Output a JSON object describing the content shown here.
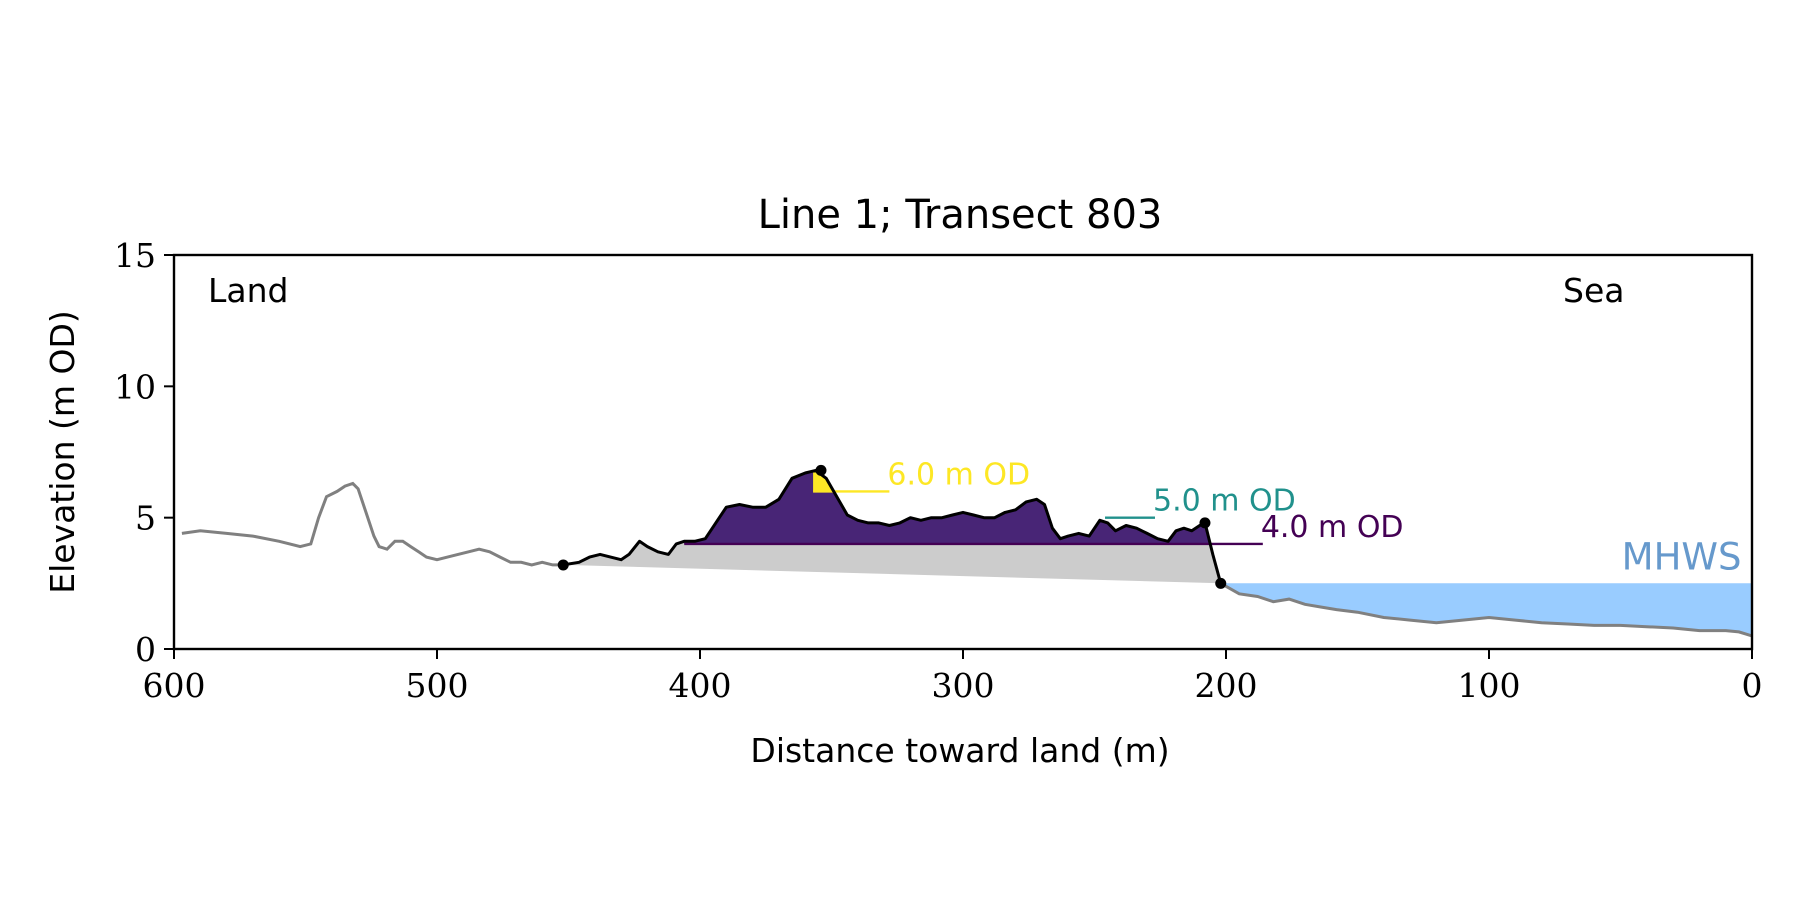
{
  "chart_data": {
    "type": "area",
    "title": "Line 1; Transect 803",
    "xlabel": "Distance toward land (m)",
    "ylabel": "Elevation (m OD)",
    "xlim": [
      600,
      0
    ],
    "ylim": [
      0,
      15
    ],
    "x_ticks": [
      600,
      500,
      400,
      300,
      200,
      100,
      0
    ],
    "x_tick_labels": [
      "600",
      "500",
      "400",
      "300",
      "200",
      "100",
      "0"
    ],
    "y_ticks": [
      0,
      5,
      10,
      15
    ],
    "y_tick_labels": [
      "0",
      "5",
      "10",
      "15"
    ],
    "grid": false,
    "corner_labels": {
      "left": "Land",
      "right": "Sea"
    },
    "mhws": {
      "label": "MHWS",
      "elevation": 2.5,
      "color": "#99ccff",
      "label_color": "#6699cc"
    },
    "thresholds": [
      {
        "label": "6.0 m OD",
        "elevation": 6.0,
        "color": "#fde725",
        "x_start": 357,
        "x_end": 328
      },
      {
        "label": "5.0 m OD",
        "elevation": 5.0,
        "color": "#21918c",
        "x_start": 246,
        "x_end": 227
      },
      {
        "label": "4.0 m OD",
        "elevation": 4.0,
        "color": "#440154",
        "x_start": 406,
        "x_end": 186
      }
    ],
    "colors": {
      "profile": "#808080",
      "dune": "#000000",
      "base_fill": "#cccccc",
      "band_fill": "#482576",
      "top_fill": "#fde725"
    },
    "dune_points": {
      "toe": {
        "x": 452,
        "y": 3.2
      },
      "crest": {
        "x": 354,
        "y": 6.8
      },
      "seaward_crest": {
        "x": 208,
        "y": 4.8
      },
      "seaward_toe": {
        "x": 202,
        "y": 2.5
      }
    },
    "profile": {
      "x": [
        597,
        590,
        580,
        570,
        560,
        552,
        548,
        545,
        542,
        538,
        535,
        532,
        530,
        527,
        524,
        522,
        519,
        516,
        513,
        510,
        507,
        504,
        500,
        496,
        492,
        488,
        484,
        480,
        476,
        472,
        468,
        464,
        460,
        456,
        452
      ],
      "y": [
        4.4,
        4.5,
        4.4,
        4.3,
        4.1,
        3.9,
        4.0,
        5.0,
        5.8,
        6.0,
        6.2,
        6.3,
        6.1,
        5.2,
        4.3,
        3.9,
        3.8,
        4.1,
        4.1,
        3.9,
        3.7,
        3.5,
        3.4,
        3.5,
        3.6,
        3.7,
        3.8,
        3.7,
        3.5,
        3.3,
        3.3,
        3.2,
        3.3,
        3.2,
        3.2
      ]
    },
    "dune_profile": {
      "x": [
        452,
        446,
        442,
        438,
        434,
        430,
        427,
        423,
        420,
        416,
        412,
        409,
        406,
        402,
        398,
        394,
        390,
        385,
        380,
        375,
        370,
        365,
        360,
        356,
        352,
        348,
        344,
        340,
        336,
        332,
        328,
        324,
        320,
        316,
        312,
        308,
        304,
        300,
        296,
        292,
        288,
        284,
        280,
        276,
        272,
        269,
        266,
        263,
        260,
        256,
        252,
        248,
        245,
        242,
        238,
        234,
        230,
        226,
        222,
        219,
        216,
        213,
        210,
        208,
        205,
        202
      ],
      "y": [
        3.2,
        3.3,
        3.5,
        3.6,
        3.5,
        3.4,
        3.6,
        4.1,
        3.9,
        3.7,
        3.6,
        4.0,
        4.1,
        4.1,
        4.2,
        4.8,
        5.4,
        5.5,
        5.4,
        5.4,
        5.7,
        6.5,
        6.7,
        6.8,
        6.5,
        5.8,
        5.1,
        4.9,
        4.8,
        4.8,
        4.7,
        4.8,
        5.0,
        4.9,
        5.0,
        5.0,
        5.1,
        5.2,
        5.1,
        5.0,
        5.0,
        5.2,
        5.3,
        5.6,
        5.7,
        5.5,
        4.6,
        4.2,
        4.3,
        4.4,
        4.3,
        4.9,
        4.8,
        4.5,
        4.7,
        4.6,
        4.4,
        4.2,
        4.1,
        4.5,
        4.6,
        4.5,
        4.7,
        4.8,
        3.6,
        2.5
      ]
    },
    "sea_profile": {
      "x": [
        202,
        195,
        188,
        182,
        176,
        170,
        164,
        158,
        150,
        140,
        130,
        120,
        110,
        100,
        90,
        80,
        70,
        60,
        50,
        40,
        30,
        20,
        10,
        5,
        0
      ],
      "y": [
        2.5,
        2.1,
        2.0,
        1.8,
        1.9,
        1.7,
        1.6,
        1.5,
        1.4,
        1.2,
        1.1,
        1.0,
        1.1,
        1.2,
        1.1,
        1.0,
        0.95,
        0.9,
        0.9,
        0.85,
        0.8,
        0.7,
        0.7,
        0.65,
        0.5
      ]
    }
  }
}
